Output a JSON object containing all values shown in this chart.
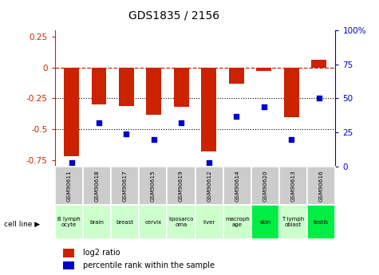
{
  "title": "GDS1835 / 2156",
  "samples": [
    "GSM90611",
    "GSM90618",
    "GSM90617",
    "GSM90615",
    "GSM90619",
    "GSM90612",
    "GSM90614",
    "GSM90620",
    "GSM90613",
    "GSM90616"
  ],
  "cell_lines": [
    "B lymph\nocyte",
    "brain",
    "breast",
    "cervix",
    "liposarco\noma",
    "liver",
    "macroph\nage",
    "skin",
    "T lymph\noblast",
    "testis"
  ],
  "cell_bg_colors": [
    "#ccffcc",
    "#ccffcc",
    "#ccffcc",
    "#ccffcc",
    "#ccffcc",
    "#ccffcc",
    "#ccffcc",
    "#00ee44",
    "#ccffcc",
    "#00ee44"
  ],
  "log2_ratio": [
    -0.72,
    -0.3,
    -0.31,
    -0.38,
    -0.32,
    -0.68,
    -0.13,
    -0.03,
    -0.4,
    0.06
  ],
  "percentile_rank": [
    3,
    32,
    24,
    20,
    32,
    3,
    37,
    44,
    20,
    50
  ],
  "bar_color": "#cc2200",
  "dot_color": "#0000cc",
  "ylim_left": [
    -0.8,
    0.3
  ],
  "ylim_right": [
    0,
    100
  ],
  "right_ticks": [
    0,
    25,
    50,
    75,
    100
  ],
  "right_tick_labels": [
    "0",
    "25",
    "50",
    "75",
    "100%"
  ],
  "left_ticks": [
    -0.75,
    -0.5,
    -0.25,
    0,
    0.25
  ],
  "hline_y": 0,
  "dotted_lines": [
    -0.25,
    -0.5
  ],
  "bar_width": 0.55,
  "title_fontsize": 10,
  "legend_red": "log2 ratio",
  "legend_blue": "percentile rank within the sample"
}
